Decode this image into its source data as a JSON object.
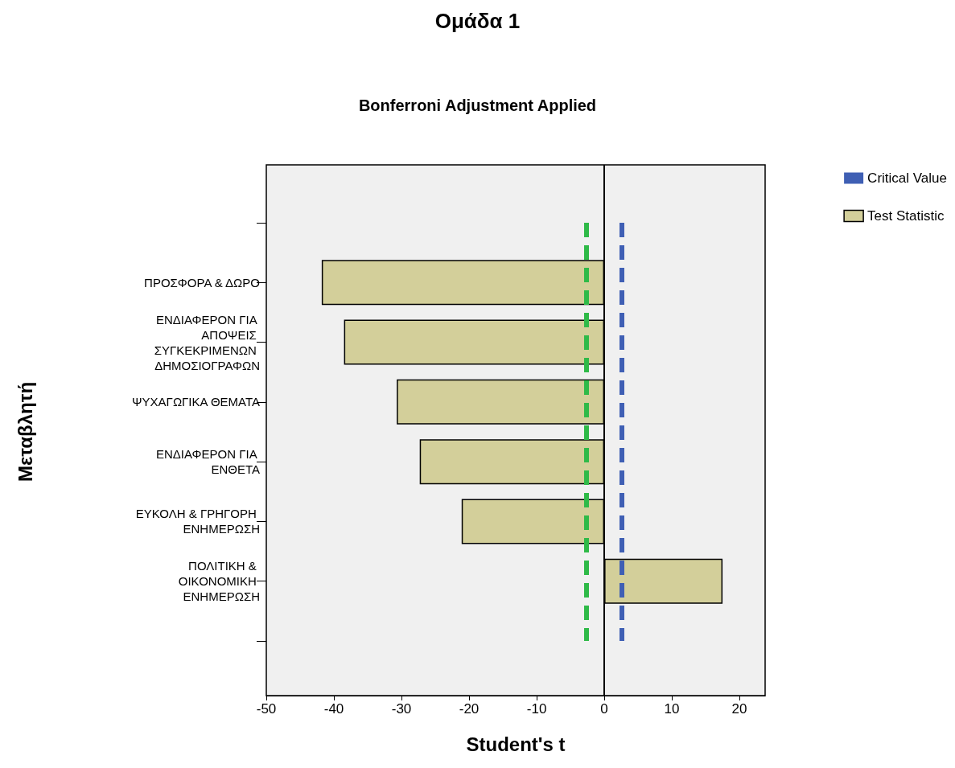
{
  "chart_data": {
    "type": "bar",
    "orientation": "horizontal",
    "title": "Ομάδα 1",
    "subtitle": "Bonferroni Adjustment Applied",
    "xlabel": "Student's t",
    "ylabel": "Μεταβλητή",
    "categories": [
      null,
      "ΠΡΟΣΦΟΡΑ & ΔΩΡΟ",
      "ΕΝΔΙΑΦΕΡΟΝ ΓΙΑ ΑΠΟΨΕΙΣ ΣΥΓΚΕΚΡΙΜΕΝΩΝ ΔΗΜΟΣΙΟΓΡΑΦΩΝ",
      "ΨΥΧΑΓΩΓΙΚΑ ΘΕΜΑΤΑ",
      "ΕΝΔΙΑΦΕΡΟΝ ΓΙΑ ΕΝΘΕΤΑ",
      "ΕΥΚΟΛΗ & ΓΡΗΓΟΡΗ ΕΝΗΜΕΡΩΣΗ",
      "ΠΟΛΙΤΙΚΗ & ΟΙΚΟΝΟΜΙΚΗ ΕΝΗΜΕΡΩΣΗ",
      null
    ],
    "series": [
      {
        "name": "Test Statistic",
        "color": "#d3cf9a",
        "values": [
          null,
          -41.8,
          -38.5,
          -30.7,
          -27.3,
          -21.1,
          17.5,
          null
        ]
      }
    ],
    "xlim": [
      -50,
      23.8
    ],
    "xticks": [
      -50,
      -40,
      -30,
      -20,
      -10,
      0,
      10,
      20
    ],
    "ref_lines": [
      {
        "axis": "x",
        "value": 2.6,
        "label": "Critical Value",
        "color": "#3f5fb4",
        "line_style": "dashed"
      },
      {
        "axis": "x",
        "value": -2.6,
        "label": null,
        "color": "#2fba48",
        "line_style": "dashed"
      },
      {
        "axis": "x",
        "value": 0,
        "label": null,
        "color": "#000000",
        "line_style": "solid"
      }
    ],
    "grid": false,
    "legend": "top right"
  }
}
